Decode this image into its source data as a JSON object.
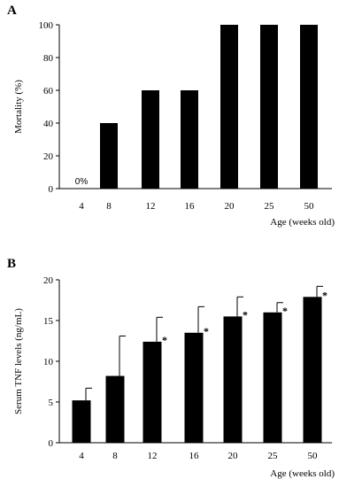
{
  "panels": {
    "a_letter": "A",
    "b_letter": "B"
  },
  "chart_data": [
    {
      "type": "bar",
      "panel": "A",
      "categories": [
        "4",
        "8",
        "12",
        "16",
        "20",
        "25",
        "50"
      ],
      "values": [
        0,
        40,
        60,
        60,
        100,
        100,
        100
      ],
      "value_labels": [
        "0%",
        "",
        "",
        "",
        "",
        "",
        ""
      ],
      "ylabel": "Mortality (%)",
      "xlabel": "Age (weeks old)",
      "ylim": [
        0,
        100
      ],
      "yticks": [
        "0",
        "20",
        "40",
        "60",
        "80",
        "100"
      ],
      "grid": false,
      "bar_color": "#000000"
    },
    {
      "type": "bar",
      "panel": "B",
      "categories": [
        "4",
        "8",
        "12",
        "16",
        "20",
        "25",
        "50"
      ],
      "values": [
        5.2,
        8.2,
        12.4,
        13.5,
        15.5,
        16.0,
        17.9
      ],
      "error_upper": [
        1.5,
        4.9,
        3.0,
        3.2,
        2.4,
        1.2,
        1.3
      ],
      "significance": [
        "",
        "",
        "*",
        "*",
        "*",
        "*",
        "*"
      ],
      "ylabel": "Serum TNF levels (ng/mL)",
      "xlabel": "Age (weeks old)",
      "ylim": [
        0,
        20
      ],
      "yticks": [
        "0",
        "5",
        "10",
        "15",
        "20"
      ],
      "grid": false,
      "bar_color": "#000000"
    }
  ]
}
